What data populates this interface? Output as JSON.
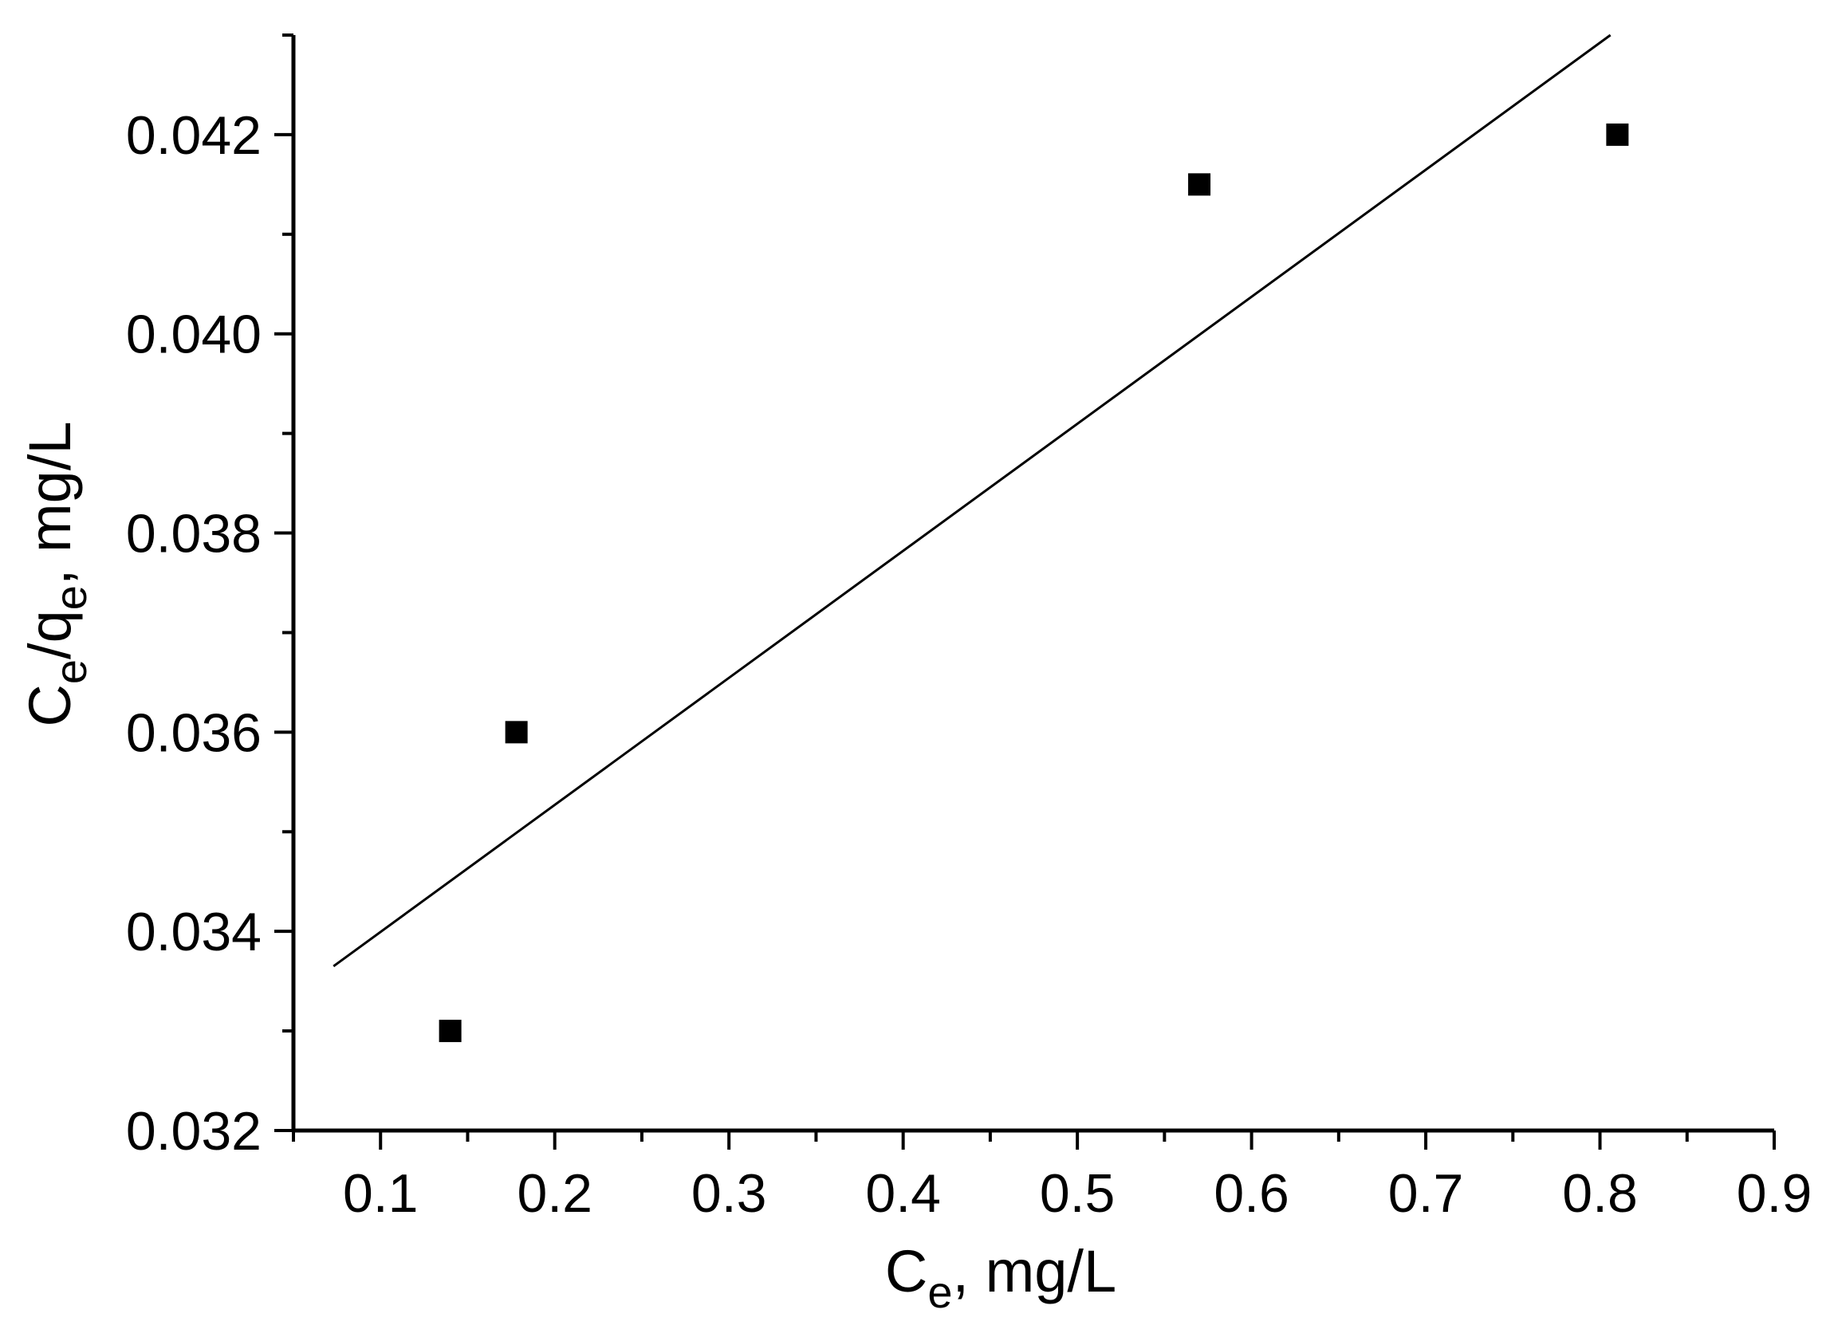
{
  "chart_data": {
    "type": "scatter",
    "title": "",
    "xlabel": {
      "main": "C",
      "sub": "e",
      "rest": ", mg/L"
    },
    "ylabel": {
      "main1": "C",
      "sub1": "e",
      "mid": "/q",
      "sub2": "e",
      "rest": ", mg/L"
    },
    "xlim": [
      0.05,
      0.9
    ],
    "ylim": [
      0.032,
      0.043
    ],
    "x_ticks": [
      "0.1",
      "0.2",
      "0.3",
      "0.4",
      "0.5",
      "0.6",
      "0.7",
      "0.8",
      "0.9"
    ],
    "y_ticks": [
      "0.032",
      "0.034",
      "0.036",
      "0.038",
      "0.040",
      "0.042"
    ],
    "points": [
      {
        "x": 0.14,
        "y": 0.033
      },
      {
        "x": 0.178,
        "y": 0.036
      },
      {
        "x": 0.57,
        "y": 0.0415
      },
      {
        "x": 0.81,
        "y": 0.042
      }
    ],
    "fit_line": {
      "x": [
        0.073,
        0.806
      ],
      "y": [
        0.03365,
        0.043
      ]
    },
    "grid": false,
    "colors": {
      "axis": "#000000",
      "marker": "#000000",
      "line": "#000000"
    }
  }
}
